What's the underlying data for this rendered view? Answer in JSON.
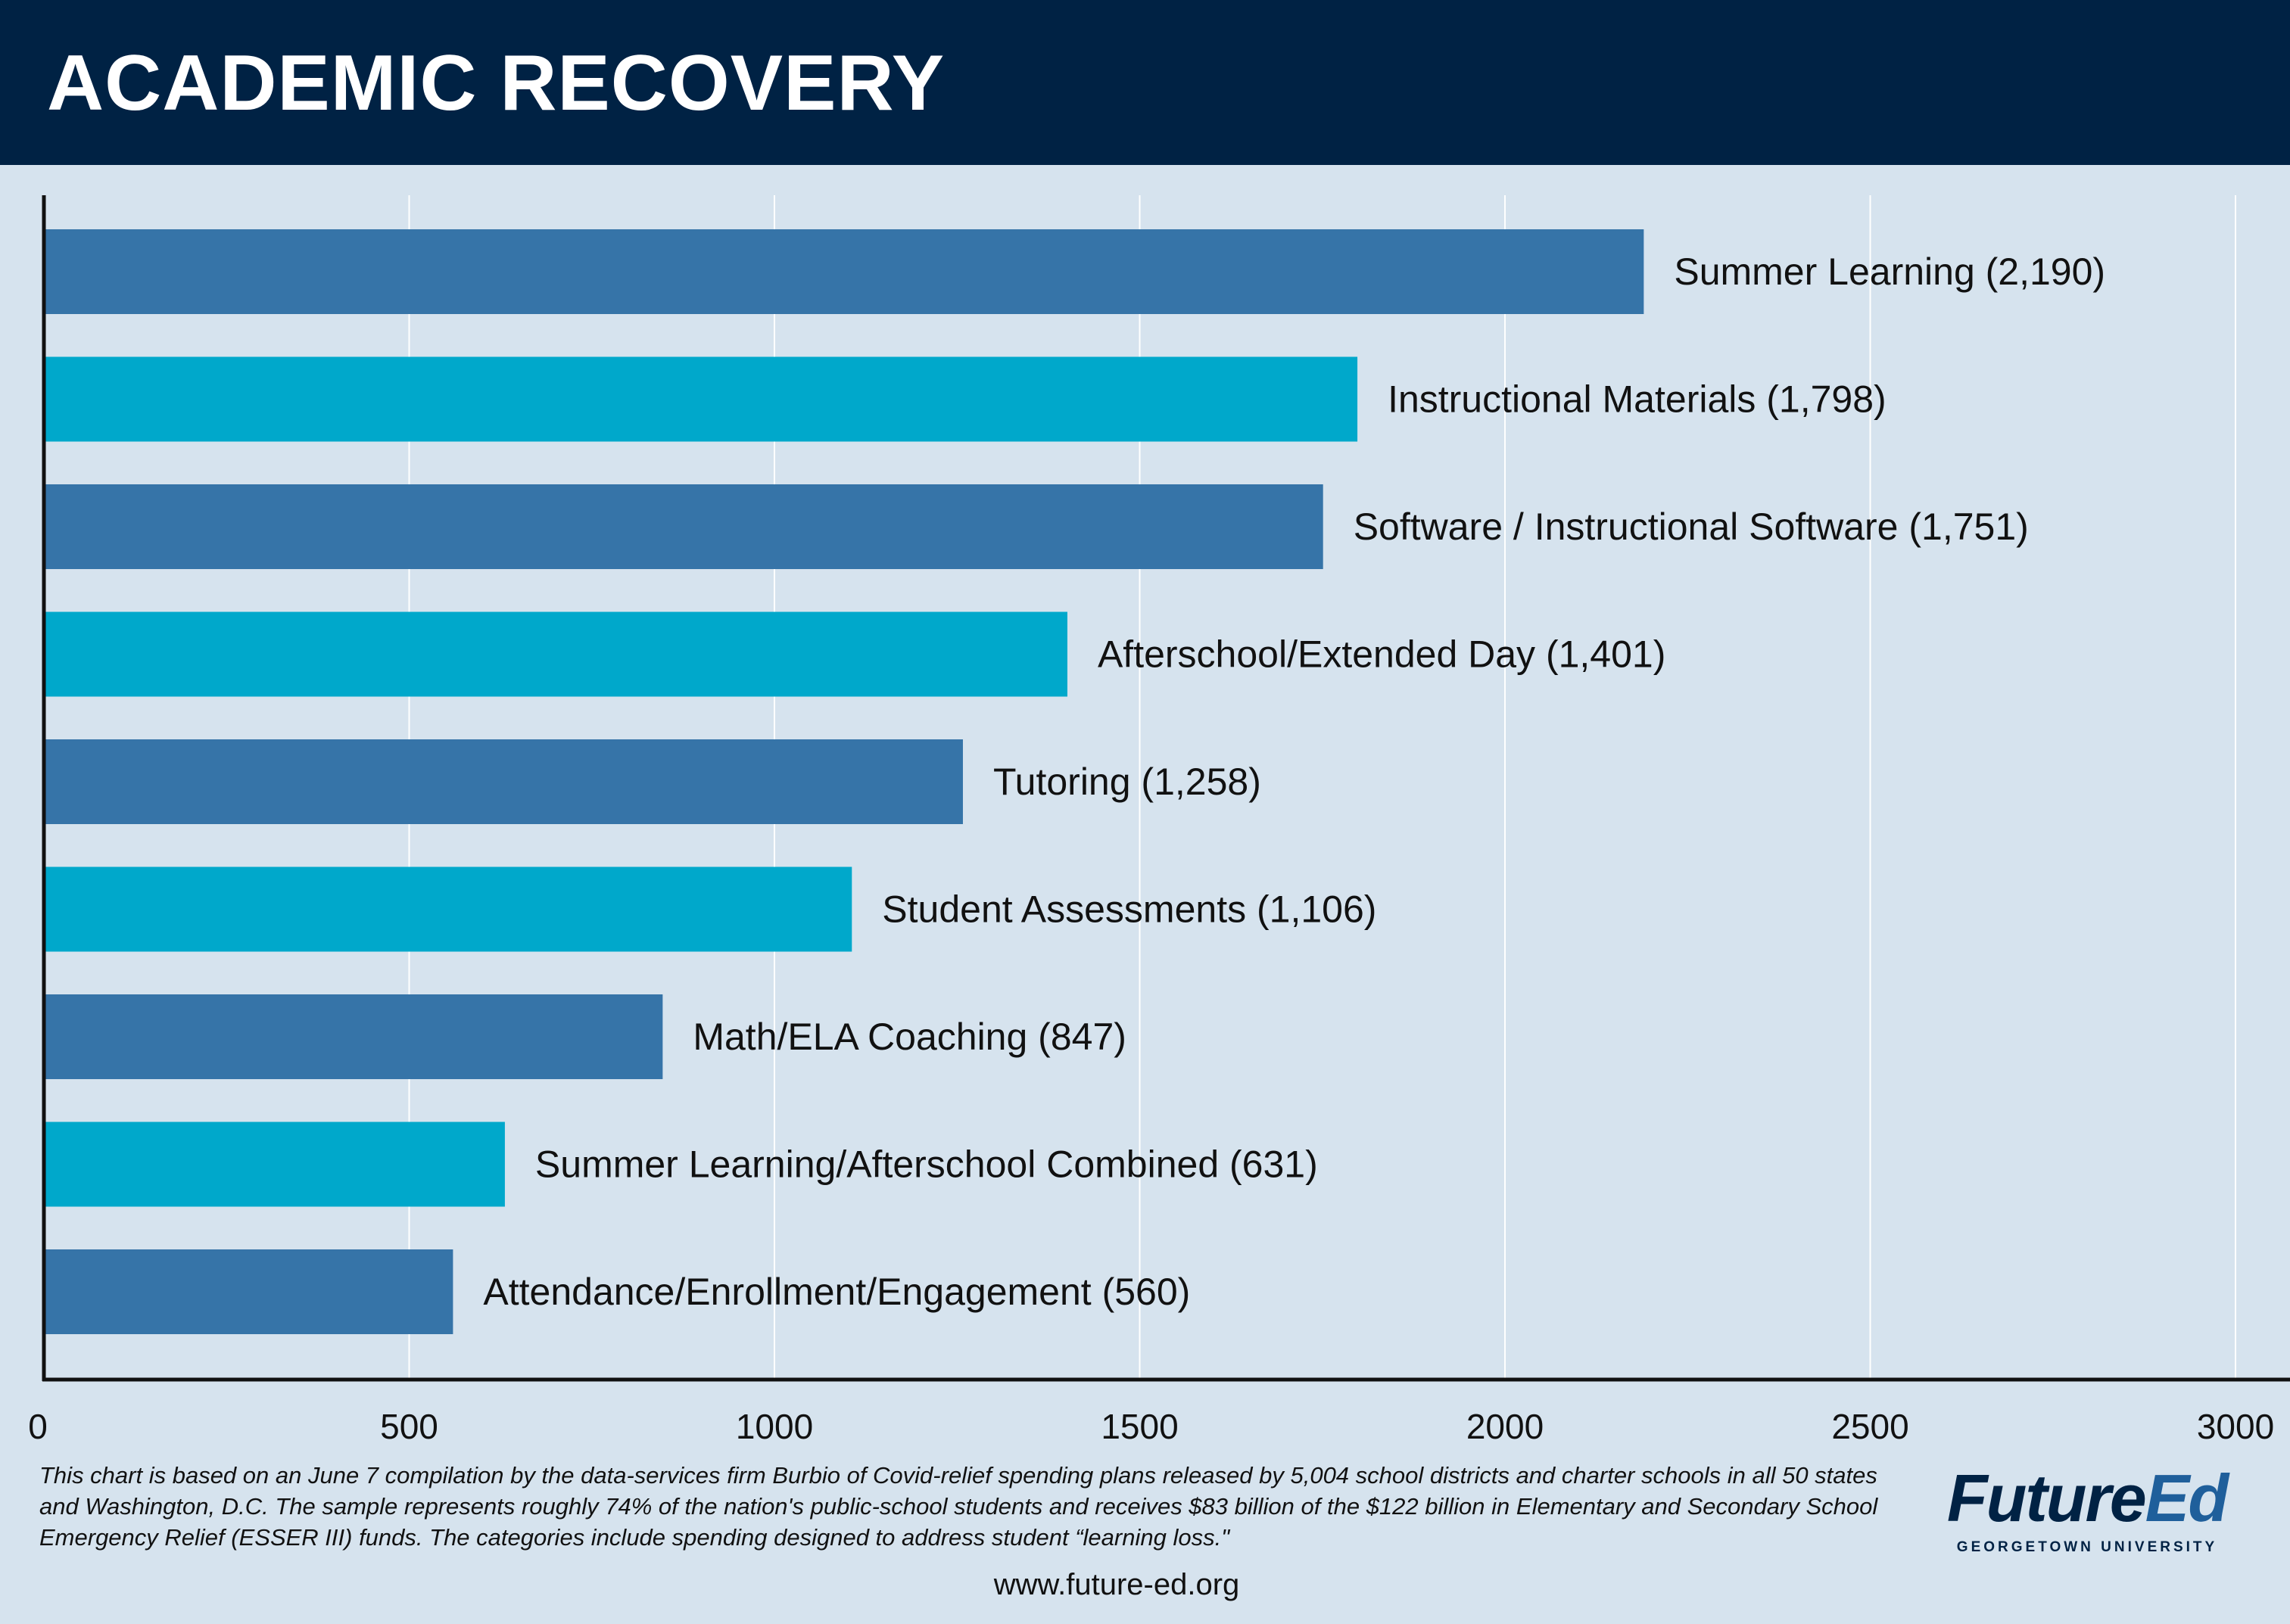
{
  "header": {
    "title": "ACADEMIC RECOVERY"
  },
  "chart_data": {
    "type": "bar",
    "orientation": "horizontal",
    "title": "ACADEMIC RECOVERY",
    "categories": [
      "Summer Learning",
      "Instructional Materials",
      "Software / Instructional Software",
      "Afterschool/Extended Day",
      "Tutoring",
      "Student Assessments",
      "Math/ELA Coaching",
      "Summer Learning/Afterschool Combined",
      "Attendance/Enrollment/Engagement"
    ],
    "values": [
      2190,
      1798,
      1751,
      1401,
      1258,
      1106,
      847,
      631,
      560
    ],
    "labels": [
      "Summer Learning (2,190)",
      "Instructional Materials (1,798)",
      "Software / Instructional Software (1,751)",
      "Afterschool/Extended Day (1,401)",
      "Tutoring (1,258)",
      "Student Assessments (1,106)",
      "Math/ELA Coaching (847)",
      "Summer Learning/Afterschool Combined (631)",
      "Attendance/Enrollment/Engagement (560)"
    ],
    "xlim": [
      0,
      3000
    ],
    "xticks": [
      "0",
      "500",
      "1000",
      "1500",
      "2000",
      "2500",
      "3000"
    ],
    "grid": true,
    "colors": [
      "#3674a8",
      "#00a8cb"
    ]
  },
  "footer": {
    "note": "This chart is based on an June 7 compilation by the data-services firm Burbio of Covid-relief spending plans released by 5,004 school districts and charter schools in all 50 states and Washington, D.C. The sample represents roughly 74% of the nation's public-school students and receives $83 billion of the $122 billion in Elementary and Secondary School Emergency Relief (ESSER III) funds. The categories include spending designed to address student “learning loss.\"",
    "url": "www.future-ed.org"
  },
  "logo": {
    "future": "Future",
    "ed": "Ed",
    "sub": "GEORGETOWN UNIVERSITY"
  }
}
